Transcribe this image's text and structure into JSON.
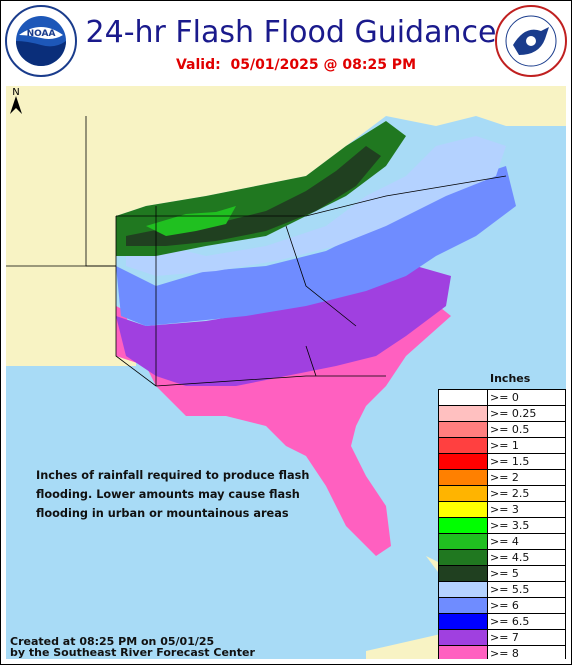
{
  "header": {
    "title": "24-hr Flash Flood Guidance",
    "valid_label": "Valid:",
    "valid_value": "05/01/2025 @ 08:25 PM"
  },
  "logos": {
    "left": {
      "name": "noaa-logo",
      "text": "NOAA",
      "ring_text": "NATIONAL OCEANIC AND ATMOSPHERIC ADMINISTRATION · U.S. DEPARTMENT OF COMMERCE"
    },
    "right": {
      "name": "nws-logo",
      "ring_text": "NATIONAL WEATHER SERVICE · U.S. DEPARTMENT OF COMMERCE"
    }
  },
  "map": {
    "north_label": "N",
    "caption": [
      "Inches of rainfall required to produce flash",
      "flooding. Lower amounts may cause flash",
      "flooding in urban or mountainous areas"
    ],
    "credit": [
      "Created at 08:25 PM on 05/01/25",
      "by the Southeast River Forecast Center"
    ]
  },
  "legend": {
    "title": "Inches",
    "items": [
      {
        "label": ">= 0",
        "color": "#ffffff"
      },
      {
        "label": ">= 0.25",
        "color": "#ffc0c0"
      },
      {
        "label": ">= 0.5",
        "color": "#ff7f7f"
      },
      {
        "label": ">= 1",
        "color": "#ff4040"
      },
      {
        "label": ">= 1.5",
        "color": "#ff0000"
      },
      {
        "label": ">= 2",
        "color": "#ff8000"
      },
      {
        "label": ">= 2.5",
        "color": "#ffb400"
      },
      {
        "label": ">= 3",
        "color": "#ffff00"
      },
      {
        "label": ">= 3.5",
        "color": "#00ff00"
      },
      {
        "label": ">= 4",
        "color": "#20c020"
      },
      {
        "label": ">= 4.5",
        "color": "#207820"
      },
      {
        "label": ">= 5",
        "color": "#204020"
      },
      {
        "label": ">= 5.5",
        "color": "#b4d2ff"
      },
      {
        "label": ">= 6",
        "color": "#6f8cff"
      },
      {
        "label": ">= 6.5",
        "color": "#0000ff"
      },
      {
        "label": ">= 7",
        "color": "#a040e0"
      },
      {
        "label": ">= 8",
        "color": "#ff60c0"
      }
    ]
  }
}
